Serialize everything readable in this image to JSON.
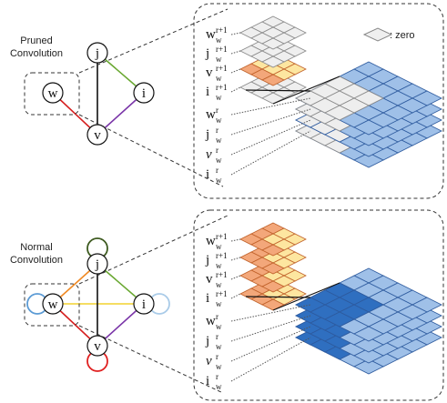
{
  "panels": [
    {
      "title": [
        "Pruned",
        "Convolution"
      ],
      "nodes": [
        "j",
        "i",
        "w",
        "v"
      ],
      "legend": ": zero",
      "layers": [
        {
          "base": "w",
          "sup": "r+1",
          "sub": "w"
        },
        {
          "base": "j",
          "sup": "r+1",
          "sub": "w"
        },
        {
          "base": "v",
          "sup": "r+1",
          "sub": "w"
        },
        {
          "base": "i",
          "sup": "r+1",
          "sub": "w"
        },
        {
          "base": "w",
          "sup": "r",
          "sub": "w"
        },
        {
          "base": "j",
          "sup": "r",
          "sub": "w"
        },
        {
          "base": "v",
          "sup": "r",
          "sub": "w"
        },
        {
          "base": "i",
          "sup": "r",
          "sub": "w"
        }
      ]
    },
    {
      "title": [
        "Normal",
        "Convolution"
      ],
      "nodes": [
        "j",
        "i",
        "w",
        "v"
      ],
      "layers": [
        {
          "base": "w",
          "sup": "r+1",
          "sub": "w"
        },
        {
          "base": "j",
          "sup": "r+1",
          "sub": "w"
        },
        {
          "base": "v",
          "sup": "r+1",
          "sub": "w"
        },
        {
          "base": "i",
          "sup": "r+1",
          "sub": "w"
        },
        {
          "base": "w",
          "sup": "r",
          "sub": "w"
        },
        {
          "base": "j",
          "sup": "r",
          "sub": "w"
        },
        {
          "base": "v",
          "sup": "r",
          "sub": "w"
        },
        {
          "base": "i",
          "sup": "r",
          "sub": "w"
        }
      ]
    }
  ]
}
